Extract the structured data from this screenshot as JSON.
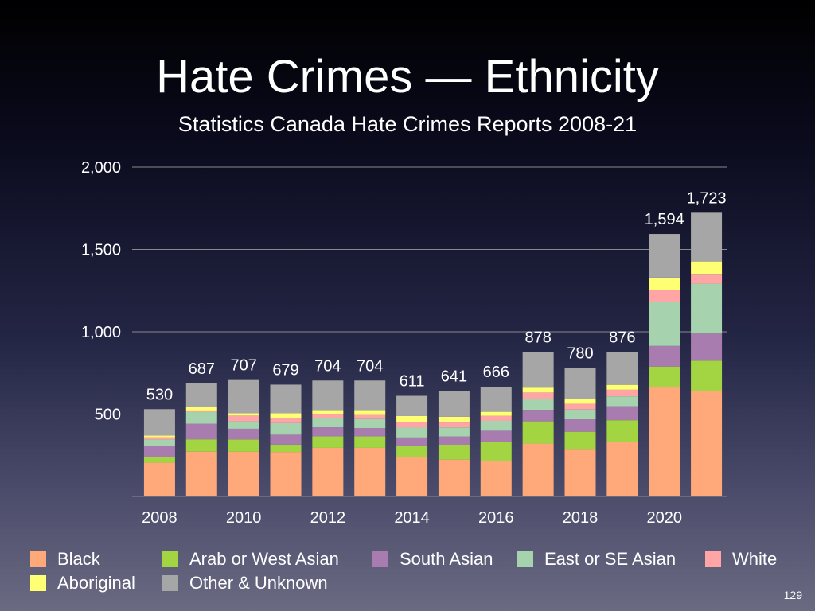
{
  "slide": {
    "title": "Hate Crimes — Ethnicity",
    "subtitle": "Statistics Canada Hate Crimes Reports 2008-21",
    "page_number": "129"
  },
  "colors": {
    "Black": "#ffa97a",
    "Arab or West Asian": "#a3d442",
    "South Asian": "#a97caf",
    "East or SE Asian": "#a6d3ae",
    "White": "#ffa5a5",
    "Aboriginal": "#ffff73",
    "Other & Unknown": "#a6a6a6",
    "gridline": "#8a8a8a",
    "text": "#ffffff"
  },
  "chart_data": {
    "type": "bar",
    "stacked": true,
    "title": "Hate Crimes — Ethnicity",
    "subtitle": "Statistics Canada Hate Crimes Reports 2008-21",
    "categories": [
      "2008",
      "2009",
      "2010",
      "2011",
      "2012",
      "2013",
      "2014",
      "2015",
      "2016",
      "2017",
      "2018",
      "2019",
      "2020",
      "2021"
    ],
    "x_tick_labels": [
      "2008",
      "",
      "2010",
      "",
      "2012",
      "",
      "2014",
      "",
      "2016",
      "",
      "2018",
      "",
      "2020",
      ""
    ],
    "totals": [
      530,
      687,
      707,
      679,
      704,
      704,
      611,
      641,
      666,
      878,
      780,
      876,
      1594,
      1723
    ],
    "total_labels": [
      "530",
      "687",
      "707",
      "679",
      "704",
      "704",
      "611",
      "641",
      "666",
      "878",
      "780",
      "876",
      "1,594",
      "1,723"
    ],
    "series": [
      {
        "name": "Black",
        "values": [
          205,
          272,
          271,
          270,
          295,
          295,
          238,
          224,
          214,
          321,
          283,
          333,
          664,
          642
        ]
      },
      {
        "name": "Arab or West Asian",
        "values": [
          35,
          75,
          75,
          45,
          70,
          70,
          70,
          90,
          115,
          135,
          110,
          130,
          125,
          182
        ]
      },
      {
        "name": "South Asian",
        "values": [
          65,
          95,
          65,
          60,
          55,
          50,
          50,
          50,
          70,
          70,
          75,
          85,
          125,
          165
        ]
      },
      {
        "name": "East or SE Asian",
        "values": [
          40,
          70,
          45,
          70,
          55,
          55,
          60,
          55,
          60,
          65,
          60,
          60,
          269,
          303
        ]
      },
      {
        "name": "White",
        "values": [
          15,
          10,
          35,
          30,
          25,
          25,
          35,
          30,
          30,
          40,
          35,
          40,
          70,
          55
        ]
      },
      {
        "name": "Aboriginal",
        "values": [
          10,
          20,
          15,
          30,
          25,
          30,
          35,
          35,
          25,
          30,
          30,
          30,
          76,
          80
        ]
      },
      {
        "name": "Other & Unknown",
        "values": [
          160,
          145,
          201,
          174,
          179,
          179,
          123,
          157,
          152,
          217,
          187,
          198,
          265,
          296
        ]
      }
    ],
    "ylim": [
      0,
      2000
    ],
    "y_ticks": [
      500,
      1000,
      1500,
      2000
    ],
    "y_tick_labels": [
      "500",
      "1,000",
      "1,500",
      "2,000"
    ],
    "grid": true,
    "legend_position": "bottom"
  }
}
